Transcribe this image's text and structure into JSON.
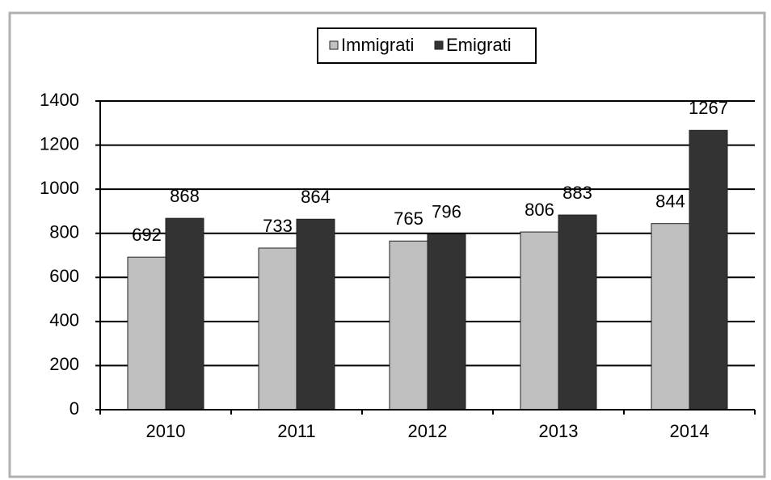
{
  "chart_data": {
    "type": "bar",
    "categories": [
      "2010",
      "2011",
      "2012",
      "2013",
      "2014"
    ],
    "series": [
      {
        "name": "Immigrati",
        "color": "#c0c0c0",
        "values": [
          692,
          733,
          765,
          806,
          844
        ]
      },
      {
        "name": "Emigrati",
        "color": "#333333",
        "values": [
          868,
          864,
          796,
          883,
          1267
        ]
      }
    ],
    "ylim": [
      0,
      1400
    ],
    "yticks": [
      0,
      200,
      400,
      600,
      800,
      1000,
      1200,
      1400
    ],
    "grid": true,
    "legend": "top"
  }
}
